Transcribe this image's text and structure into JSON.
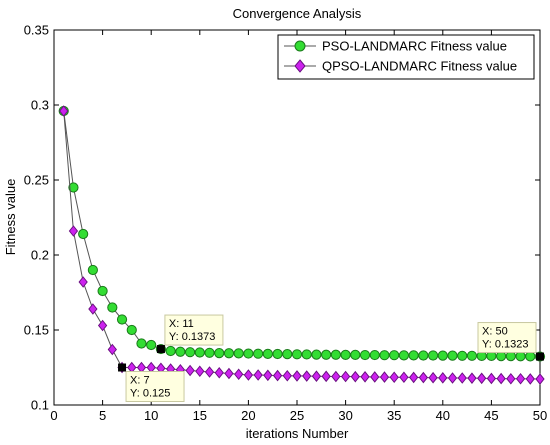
{
  "chart_data": {
    "type": "line",
    "title": "Convergence Analysis",
    "xlabel": "iterations Number",
    "ylabel": "Fitness value",
    "xlim": [
      0,
      50
    ],
    "ylim": [
      0.1,
      0.35
    ],
    "xticks": [
      0,
      5,
      10,
      15,
      20,
      25,
      30,
      35,
      40,
      45,
      50
    ],
    "yticks": [
      0.1,
      0.15,
      0.2,
      0.25,
      0.3,
      0.35
    ],
    "xtick_labels": [
      "0",
      "5",
      "10",
      "15",
      "20",
      "25",
      "30",
      "35",
      "40",
      "45",
      "50"
    ],
    "ytick_labels": [
      "0.1",
      "0.15",
      "0.2",
      "0.25",
      "0.3",
      "0.35"
    ],
    "grid": false,
    "legend_position": "top-right",
    "x": [
      1,
      2,
      3,
      4,
      5,
      6,
      7,
      8,
      9,
      10,
      11,
      12,
      13,
      14,
      15,
      16,
      17,
      18,
      19,
      20,
      21,
      22,
      23,
      24,
      25,
      26,
      27,
      28,
      29,
      30,
      31,
      32,
      33,
      34,
      35,
      36,
      37,
      38,
      39,
      40,
      41,
      42,
      43,
      44,
      45,
      46,
      47,
      48,
      49,
      50
    ],
    "series": [
      {
        "name": "PSO-LANDMARC Fitness value",
        "marker": "circle",
        "color": "#33dd33",
        "values": [
          0.296,
          0.245,
          0.214,
          0.19,
          0.176,
          0.165,
          0.157,
          0.15,
          0.141,
          0.14,
          0.1373,
          0.136,
          0.1355,
          0.1352,
          0.135,
          0.1348,
          0.1346,
          0.1345,
          0.1344,
          0.1343,
          0.1342,
          0.1341,
          0.134,
          0.1339,
          0.1338,
          0.1337,
          0.1336,
          0.1335,
          0.1335,
          0.1334,
          0.1334,
          0.1333,
          0.1333,
          0.1332,
          0.1332,
          0.1331,
          0.1331,
          0.133,
          0.133,
          0.1329,
          0.1329,
          0.1328,
          0.1328,
          0.1327,
          0.1327,
          0.1326,
          0.1326,
          0.1325,
          0.1324,
          0.1323
        ]
      },
      {
        "name": "QPSO-LANDMARC Fitness value",
        "marker": "diamond",
        "color": "#cc22ee",
        "values": [
          0.296,
          0.216,
          0.182,
          0.164,
          0.153,
          0.137,
          0.125,
          0.125,
          0.125,
          0.125,
          0.1245,
          0.124,
          0.1235,
          0.123,
          0.1225,
          0.122,
          0.1215,
          0.121,
          0.1205,
          0.12,
          0.12,
          0.1198,
          0.1196,
          0.1195,
          0.1194,
          0.1193,
          0.1192,
          0.1191,
          0.119,
          0.119,
          0.1189,
          0.1188,
          0.1187,
          0.1186,
          0.1185,
          0.1185,
          0.1184,
          0.1183,
          0.1182,
          0.1181,
          0.118,
          0.118,
          0.1179,
          0.1178,
          0.1177,
          0.1176,
          0.1175,
          0.1175,
          0.1174,
          0.1173
        ]
      }
    ],
    "annotations": [
      {
        "x_label": "X: 7",
        "y_label": "Y: 0.125",
        "x": 7,
        "y": 0.125
      },
      {
        "x_label": "X: 11",
        "y_label": "Y: 0.1373",
        "x": 11,
        "y": 0.1373
      },
      {
        "x_label": "X: 50",
        "y_label": "Y: 0.1323",
        "x": 50,
        "y": 0.1323
      }
    ]
  }
}
